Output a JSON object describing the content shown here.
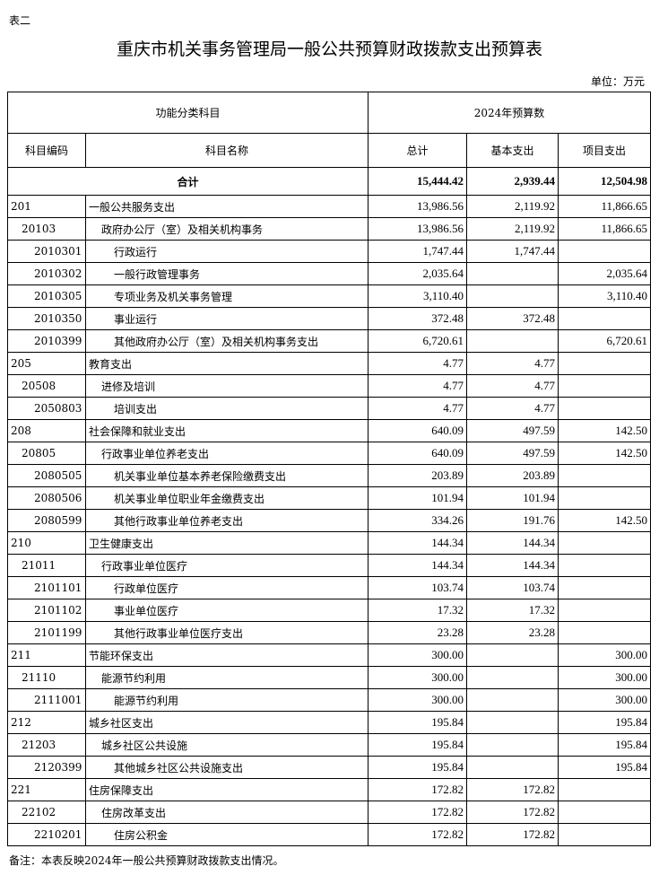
{
  "table_label": "表二",
  "title": "重庆市机关事务管理局一般公共预算财政拨款支出预算表",
  "unit": "单位：万元",
  "header": {
    "func_class": "功能分类科目",
    "budget_2024": "2024年预算数",
    "code": "科目编码",
    "name": "科目名称",
    "total": "总计",
    "basic": "基本支出",
    "project": "项目支出"
  },
  "total_row": {
    "label": "合计",
    "total": "15,444.42",
    "basic": "2,939.44",
    "project": "12,504.98"
  },
  "rows": [
    {
      "level": 1,
      "code": "201",
      "name": "一般公共服务支出",
      "total": "13,986.56",
      "basic": "2,119.92",
      "project": "11,866.65"
    },
    {
      "level": 2,
      "code": "20103",
      "name": "政府办公厅（室）及相关机构事务",
      "total": "13,986.56",
      "basic": "2,119.92",
      "project": "11,866.65"
    },
    {
      "level": 3,
      "code": "2010301",
      "name": "行政运行",
      "total": "1,747.44",
      "basic": "1,747.44",
      "project": ""
    },
    {
      "level": 3,
      "code": "2010302",
      "name": "一般行政管理事务",
      "total": "2,035.64",
      "basic": "",
      "project": "2,035.64"
    },
    {
      "level": 3,
      "code": "2010305",
      "name": "专项业务及机关事务管理",
      "total": "3,110.40",
      "basic": "",
      "project": "3,110.40"
    },
    {
      "level": 3,
      "code": "2010350",
      "name": "事业运行",
      "total": "372.48",
      "basic": "372.48",
      "project": ""
    },
    {
      "level": 3,
      "code": "2010399",
      "name": "其他政府办公厅（室）及相关机构事务支出",
      "total": "6,720.61",
      "basic": "",
      "project": "6,720.61"
    },
    {
      "level": 1,
      "code": "205",
      "name": "教育支出",
      "total": "4.77",
      "basic": "4.77",
      "project": ""
    },
    {
      "level": 2,
      "code": "20508",
      "name": "进修及培训",
      "total": "4.77",
      "basic": "4.77",
      "project": ""
    },
    {
      "level": 3,
      "code": "2050803",
      "name": "培训支出",
      "total": "4.77",
      "basic": "4.77",
      "project": ""
    },
    {
      "level": 1,
      "code": "208",
      "name": "社会保障和就业支出",
      "total": "640.09",
      "basic": "497.59",
      "project": "142.50"
    },
    {
      "level": 2,
      "code": "20805",
      "name": "行政事业单位养老支出",
      "total": "640.09",
      "basic": "497.59",
      "project": "142.50"
    },
    {
      "level": 3,
      "code": "2080505",
      "name": "机关事业单位基本养老保险缴费支出",
      "total": "203.89",
      "basic": "203.89",
      "project": ""
    },
    {
      "level": 3,
      "code": "2080506",
      "name": "机关事业单位职业年金缴费支出",
      "total": "101.94",
      "basic": "101.94",
      "project": ""
    },
    {
      "level": 3,
      "code": "2080599",
      "name": "其他行政事业单位养老支出",
      "total": "334.26",
      "basic": "191.76",
      "project": "142.50"
    },
    {
      "level": 1,
      "code": "210",
      "name": "卫生健康支出",
      "total": "144.34",
      "basic": "144.34",
      "project": ""
    },
    {
      "level": 2,
      "code": "21011",
      "name": "行政事业单位医疗",
      "total": "144.34",
      "basic": "144.34",
      "project": ""
    },
    {
      "level": 3,
      "code": "2101101",
      "name": "行政单位医疗",
      "total": "103.74",
      "basic": "103.74",
      "project": ""
    },
    {
      "level": 3,
      "code": "2101102",
      "name": "事业单位医疗",
      "total": "17.32",
      "basic": "17.32",
      "project": ""
    },
    {
      "level": 3,
      "code": "2101199",
      "name": "其他行政事业单位医疗支出",
      "total": "23.28",
      "basic": "23.28",
      "project": ""
    },
    {
      "level": 1,
      "code": "211",
      "name": "节能环保支出",
      "total": "300.00",
      "basic": "",
      "project": "300.00"
    },
    {
      "level": 2,
      "code": "21110",
      "name": "能源节约利用",
      "total": "300.00",
      "basic": "",
      "project": "300.00"
    },
    {
      "level": 3,
      "code": "2111001",
      "name": "能源节约利用",
      "total": "300.00",
      "basic": "",
      "project": "300.00"
    },
    {
      "level": 1,
      "code": "212",
      "name": "城乡社区支出",
      "total": "195.84",
      "basic": "",
      "project": "195.84"
    },
    {
      "level": 2,
      "code": "21203",
      "name": "城乡社区公共设施",
      "total": "195.84",
      "basic": "",
      "project": "195.84"
    },
    {
      "level": 3,
      "code": "2120399",
      "name": "其他城乡社区公共设施支出",
      "total": "195.84",
      "basic": "",
      "project": "195.84"
    },
    {
      "level": 1,
      "code": "221",
      "name": "住房保障支出",
      "total": "172.82",
      "basic": "172.82",
      "project": ""
    },
    {
      "level": 2,
      "code": "22102",
      "name": "住房改革支出",
      "total": "172.82",
      "basic": "172.82",
      "project": ""
    },
    {
      "level": 3,
      "code": "2210201",
      "name": "住房公积金",
      "total": "172.82",
      "basic": "172.82",
      "project": ""
    }
  ],
  "note": "备注：本表反映2024年一般公共预算财政拨款支出情况。"
}
